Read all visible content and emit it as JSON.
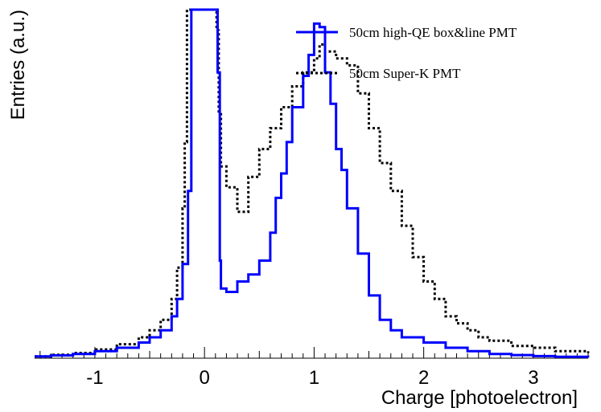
{
  "chart_data": {
    "type": "line",
    "title": "",
    "xlabel": "Charge [photoelectron]",
    "ylabel": "Entries (a.u.)",
    "xlim": [
      -1.55,
      3.5
    ],
    "ylim": [
      0,
      100
    ],
    "x_ticks": [
      -1,
      0,
      1,
      2,
      3
    ],
    "x_tick_labels": [
      "-1",
      "0",
      "1",
      "2",
      "3"
    ],
    "grid": false,
    "legend_position": "top-right",
    "series": [
      {
        "name": "50cm high-QE box&line PMT",
        "color": "#0000ff",
        "style": "solid",
        "x": [
          -1.55,
          -1.4,
          -1.2,
          -1.0,
          -0.8,
          -0.6,
          -0.5,
          -0.4,
          -0.3,
          -0.25,
          -0.2,
          -0.15,
          -0.12,
          -0.1,
          0.1,
          0.11,
          0.12,
          0.14,
          0.15,
          0.2,
          0.3,
          0.4,
          0.5,
          0.6,
          0.65,
          0.7,
          0.75,
          0.8,
          0.9,
          0.95,
          1.0,
          1.05,
          1.1,
          1.15,
          1.2,
          1.25,
          1.3,
          1.4,
          1.5,
          1.6,
          1.7,
          1.8,
          2.0,
          2.2,
          2.4,
          2.6,
          2.8,
          3.0,
          3.2,
          3.5
        ],
        "y": [
          0.5,
          0.8,
          1.2,
          2.0,
          3.0,
          4.5,
          6.0,
          8.0,
          12.0,
          17.0,
          27.0,
          48.0,
          100.0,
          100.0,
          100.0,
          100.0,
          82.0,
          28.0,
          20.0,
          19.0,
          22.0,
          24.0,
          28.0,
          36.0,
          46.0,
          53.0,
          62.0,
          72.0,
          81.0,
          87.0,
          96.0,
          95.0,
          82.0,
          73.0,
          60.0,
          54.0,
          43.0,
          30.0,
          18.0,
          11.0,
          8.0,
          6.0,
          4.5,
          3.0,
          2.0,
          1.2,
          0.9,
          0.6,
          0.4,
          0.3
        ]
      },
      {
        "name": "50cm Super-K PMT",
        "color": "#000000",
        "style": "dotted",
        "x": [
          -1.55,
          -1.4,
          -1.2,
          -1.0,
          -0.8,
          -0.6,
          -0.5,
          -0.4,
          -0.3,
          -0.25,
          -0.2,
          -0.18,
          -0.16,
          -0.14,
          0.1,
          0.11,
          0.13,
          0.15,
          0.2,
          0.3,
          0.4,
          0.5,
          0.6,
          0.7,
          0.8,
          0.9,
          1.0,
          1.05,
          1.1,
          1.2,
          1.3,
          1.4,
          1.5,
          1.6,
          1.7,
          1.8,
          1.9,
          2.0,
          2.1,
          2.2,
          2.3,
          2.4,
          2.5,
          2.6,
          2.8,
          3.0,
          3.2,
          3.5
        ],
        "y": [
          0.5,
          1.0,
          1.5,
          2.5,
          4.0,
          6.0,
          8.0,
          11.0,
          17.0,
          26.0,
          43.0,
          62.0,
          100.0,
          100.0,
          100.0,
          94.0,
          70.0,
          55.0,
          49.0,
          42.0,
          52.0,
          60.0,
          66.0,
          72.0,
          78.0,
          82.0,
          86.0,
          90.0,
          88.0,
          86.0,
          84.0,
          76.0,
          66.0,
          56.0,
          48.0,
          38.0,
          29.0,
          22.0,
          17.0,
          12.0,
          10.0,
          8.0,
          6.0,
          5.0,
          3.5,
          3.0,
          2.0,
          1.5
        ]
      }
    ]
  }
}
